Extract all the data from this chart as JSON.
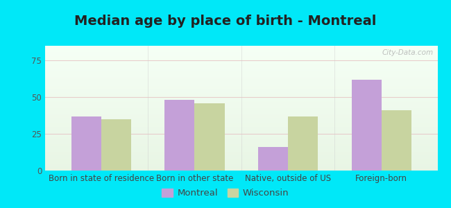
{
  "title": "Median age by place of birth - Montreal",
  "categories": [
    "Born in state of residence",
    "Born in other state",
    "Native, outside of US",
    "Foreign-born"
  ],
  "montreal_values": [
    37,
    48,
    16,
    62
  ],
  "wisconsin_values": [
    35,
    46,
    37,
    41
  ],
  "montreal_color": "#c4a0d8",
  "wisconsin_color": "#c8d4a0",
  "background_outer": "#00e8f8",
  "ylim": [
    0,
    85
  ],
  "yticks": [
    0,
    25,
    50,
    75
  ],
  "legend_labels": [
    "Montreal",
    "Wisconsin"
  ],
  "bar_width": 0.32,
  "title_fontsize": 14,
  "tick_fontsize": 8.5,
  "legend_fontsize": 9.5,
  "watermark": "City-Data.com"
}
